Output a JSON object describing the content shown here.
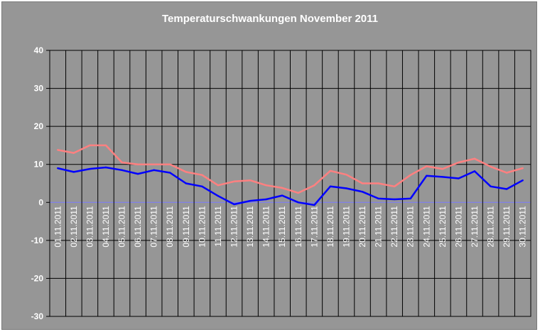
{
  "chart_data": {
    "type": "line",
    "title": "Temperaturschwankungen November 2011",
    "xlabel": "",
    "ylabel": "",
    "ylim": [
      -30,
      40
    ],
    "yticks": [
      40,
      30,
      20,
      10,
      0,
      -10,
      -20,
      -30
    ],
    "grid": true,
    "legend": "none",
    "categories": [
      "01.11.2011",
      "02.11.2011",
      "03.11.2011",
      "04.11.2011",
      "05.11.2011",
      "06.11.2011",
      "07.11.2011",
      "08.11.2011",
      "09.11.2011",
      "10.11.2011",
      "11.11.2011",
      "12.11.2011",
      "13.11.2011",
      "14.11.2011",
      "15.11.2011",
      "16.11.2011",
      "17.11.2011",
      "18.11.2011",
      "19.11.2011",
      "20.11.2011",
      "21.11.2011",
      "22.11.2011",
      "23.11.2011",
      "24.11.2011",
      "25.11.2011",
      "26.11.2011",
      "27.11.2011",
      "28.11.2011",
      "29.11.2011",
      "30.11.2011"
    ],
    "series": [
      {
        "color": "#ff8080",
        "values": [
          13.8,
          13.0,
          15.0,
          15.0,
          10.5,
          10.0,
          10.0,
          10.0,
          8.0,
          7.2,
          4.5,
          5.5,
          5.8,
          4.5,
          3.8,
          2.5,
          4.5,
          8.3,
          7.3,
          5.0,
          5.0,
          4.2,
          7.2,
          9.5,
          8.8,
          10.5,
          11.5,
          9.4,
          7.8,
          9.0
        ]
      },
      {
        "color": "#0000ff",
        "values": [
          9.0,
          8.0,
          8.8,
          9.2,
          8.5,
          7.5,
          8.5,
          7.8,
          5.0,
          4.2,
          1.7,
          -0.5,
          0.4,
          0.8,
          1.8,
          0.0,
          -0.7,
          4.2,
          3.7,
          2.8,
          1.0,
          0.8,
          1.0,
          7.0,
          6.7,
          6.3,
          8.2,
          4.2,
          3.5,
          5.8
        ]
      }
    ],
    "colors": {
      "background": "#969696",
      "plot_background": "#969696",
      "grid": "#000000",
      "zero_line": "#7a7aff",
      "text": "#ffffff"
    }
  }
}
